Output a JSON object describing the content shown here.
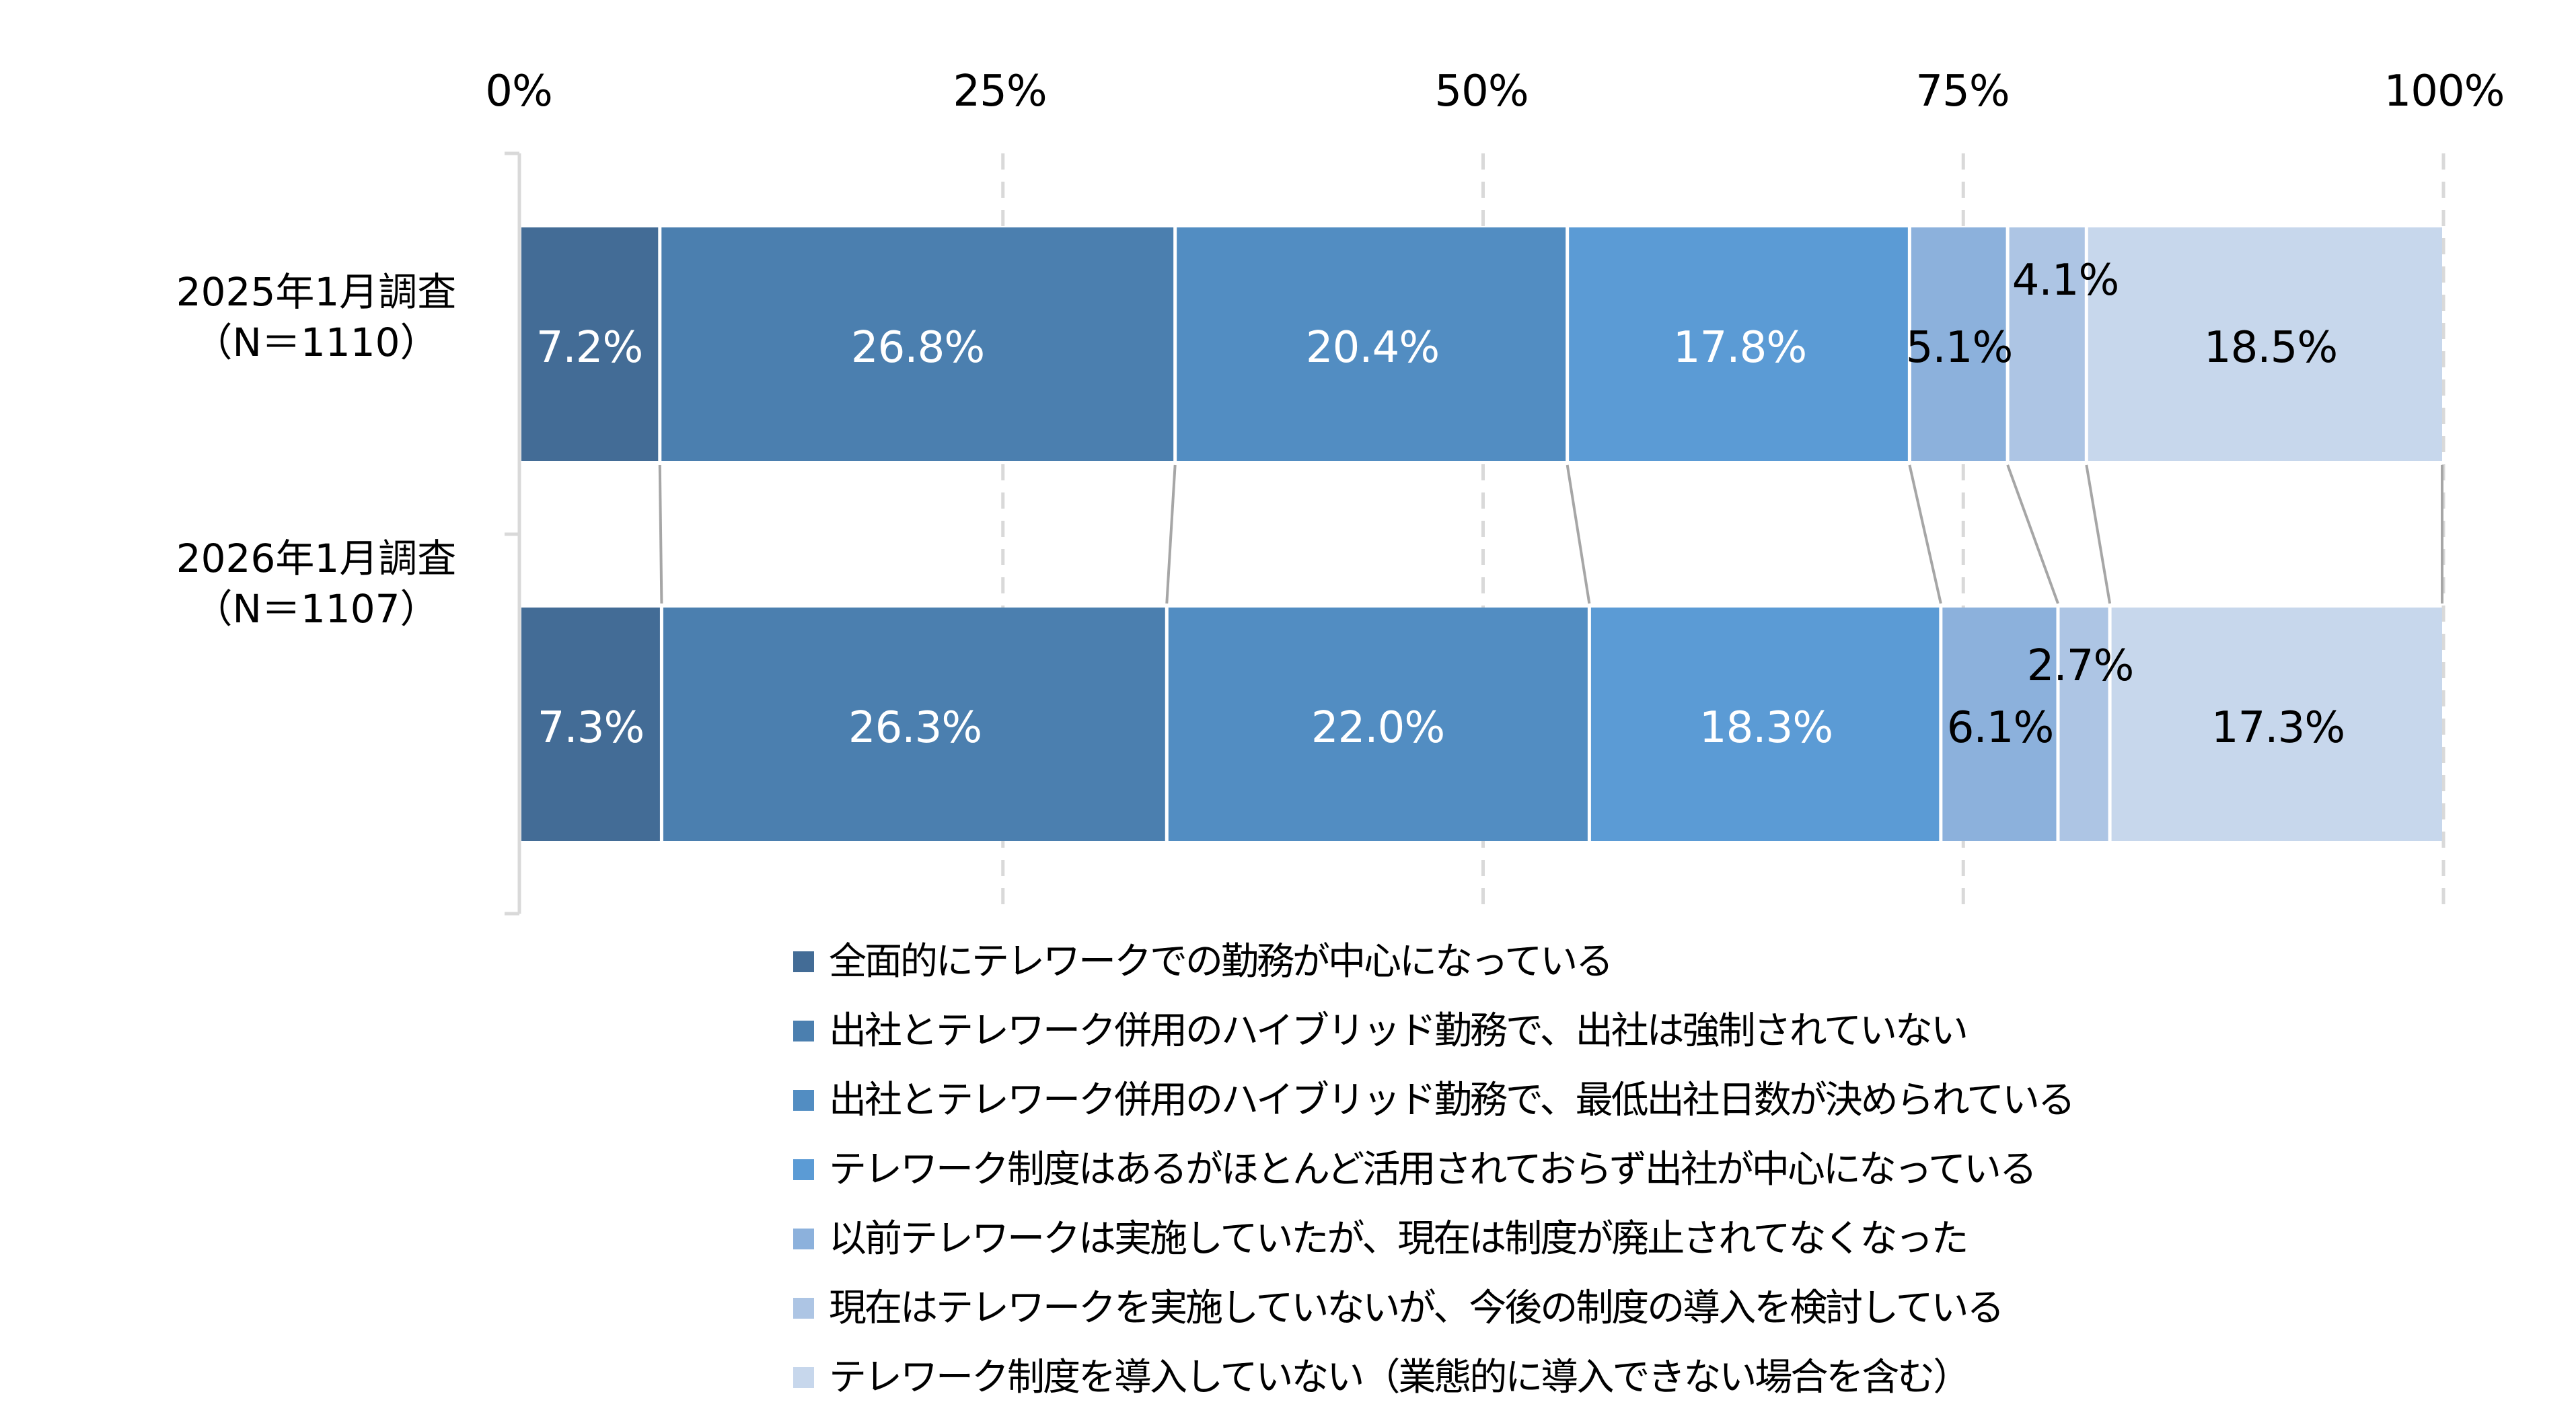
{
  "chart_data": {
    "type": "bar",
    "orientation": "horizontal",
    "stacked": "100%",
    "title": "",
    "xlabel": "",
    "ylabel": "",
    "xlim": [
      0,
      100
    ],
    "x_ticks": [
      "0%",
      "25%",
      "50%",
      "75%",
      "100%"
    ],
    "x_axis_position": "top",
    "grid": "vertical dashed",
    "legend_position": "bottom",
    "series_lines": true,
    "categories": [
      {
        "label_line1": "2025年1月調査",
        "label_line2": "（N＝1110）"
      },
      {
        "label_line1": "2026年1月調査",
        "label_line2": "（N＝1107）"
      }
    ],
    "series": [
      {
        "name": "全面的にテレワークでの勤務が中心になっている",
        "color": "#436C96",
        "label_color": "#FFFFFF",
        "values": [
          7.2,
          7.3
        ],
        "labels": [
          "7.2%",
          "7.3%"
        ]
      },
      {
        "name": "出社とテレワーク併用のハイブリッド勤務で、出社は強制されていない",
        "color": "#4B7FAF",
        "label_color": "#FFFFFF",
        "values": [
          26.8,
          26.3
        ],
        "labels": [
          "26.8%",
          "26.3%"
        ]
      },
      {
        "name": "出社とテレワーク併用のハイブリッド勤務で、最低出社日数が決められている",
        "color": "#528DC2",
        "label_color": "#FFFFFF",
        "values": [
          20.4,
          22.0
        ],
        "labels": [
          "20.4%",
          "22.0%"
        ]
      },
      {
        "name": "テレワーク制度はあるがほとんど活用されておらず出社が中心になっている",
        "color": "#5B9BD5",
        "label_color": "#FFFFFF",
        "values": [
          17.8,
          18.3
        ],
        "labels": [
          "17.8%",
          "18.3%"
        ]
      },
      {
        "name": "以前テレワークは実施していたが、現在は制度が廃止されてなくなった",
        "color": "#8CB1DC",
        "label_color": "#000000",
        "values": [
          5.1,
          6.1
        ],
        "labels": [
          "5.1%",
          "6.1%"
        ]
      },
      {
        "name": "現在はテレワークを実施していないが、今後の制度の導入を検討している",
        "color": "#ADC5E4",
        "label_color": "#000000",
        "values": [
          4.1,
          2.7
        ],
        "labels": [
          "4.1%",
          "2.7%"
        ]
      },
      {
        "name": "テレワーク制度を導入していない（業態的に導入できない場合を含む）",
        "color": "#C7D7EC",
        "label_color": "#000000",
        "values": [
          18.5,
          17.3
        ],
        "labels": [
          "18.5%",
          "17.3%"
        ]
      }
    ]
  },
  "axis": {
    "ticks": [
      "0%",
      "25%",
      "50%",
      "75%",
      "100%"
    ]
  },
  "rows": [
    {
      "title": "2025年1月調査",
      "n": "（N＝1110）"
    },
    {
      "title": "2026年1月調査",
      "n": "（N＝1107）"
    }
  ],
  "legend": [
    {
      "label": "全面的にテレワークでの勤務が中心になっている",
      "color": "#436C96"
    },
    {
      "label": "出社とテレワーク併用のハイブリッド勤務で、出社は強制されていない",
      "color": "#4B7FAF"
    },
    {
      "label": "出社とテレワーク併用のハイブリッド勤務で、最低出社日数が決められている",
      "color": "#528DC2"
    },
    {
      "label": "テレワーク制度はあるがほとんど活用されておらず出社が中心になっている",
      "color": "#5B9BD5"
    },
    {
      "label": "以前テレワークは実施していたが、現在は制度が廃止されてなくなった",
      "color": "#8CB1DC"
    },
    {
      "label": "現在はテレワークを実施していないが、今後の制度の導入を検討している",
      "color": "#ADC5E4"
    },
    {
      "label": "テレワーク制度を導入していない（業態的に導入できない場合を含む）",
      "color": "#C7D7EC"
    }
  ],
  "colors": {
    "gridline": "#D9D9D9",
    "axis_line": "#D9D9D9",
    "series_line": "#A6A6A6",
    "background": "#FFFFFF"
  }
}
